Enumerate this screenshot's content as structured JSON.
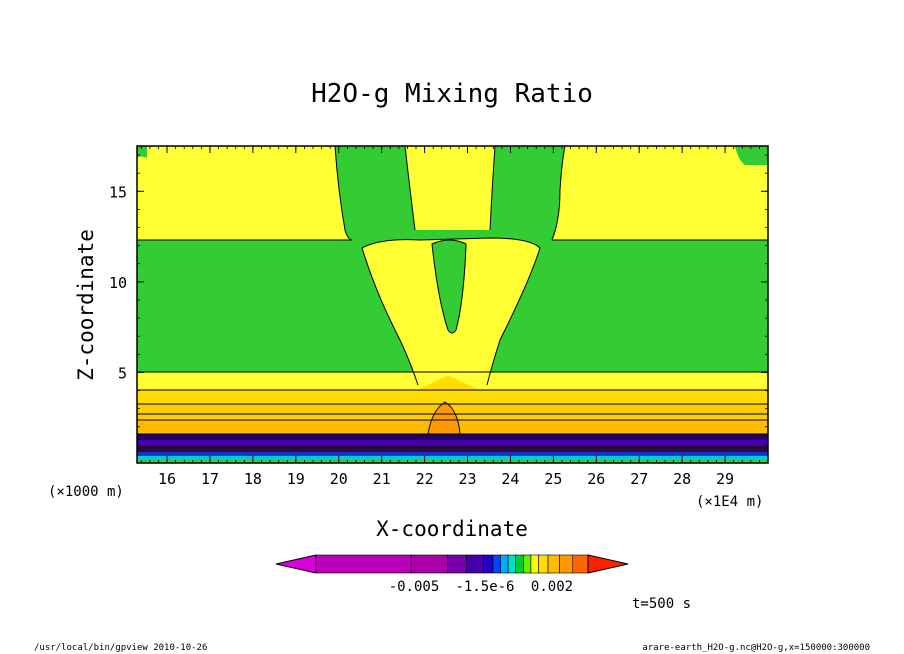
{
  "chart_data": {
    "type": "heatmap",
    "title": "H2O-g Mixing Ratio",
    "xlabel": "X-coordinate",
    "ylabel": "Z-coordinate",
    "x_unit_left": "(×1000 m)",
    "x_unit_right": "(×1E4 m)",
    "x_ticks": [
      "16",
      "17",
      "18",
      "19",
      "20",
      "21",
      "22",
      "23",
      "24",
      "25",
      "26",
      "27",
      "28",
      "29"
    ],
    "y_ticks": [
      "5",
      "10",
      "15"
    ],
    "xlim": [
      15.3,
      30.0
    ],
    "ylim": [
      0,
      17.5
    ],
    "colorbar_ticks": [
      "-0.005",
      "-1.5e-6",
      "0.002"
    ],
    "colorbar_colors": [
      "#dd00dd",
      "#bb00bb",
      "#aa00aa",
      "#7700aa",
      "#4400aa",
      "#2200cc",
      "#0044ff",
      "#00aaff",
      "#00ddcc",
      "#00cc33",
      "#66ee00",
      "#ffff00",
      "#ffdd00",
      "#ffbb00",
      "#ff9900",
      "#ff6600",
      "#ff2200"
    ],
    "time_label": "t=500 s",
    "regions": [
      {
        "name": "green-band",
        "color": "#33cc33",
        "z": [
          5.2,
          12.5
        ]
      },
      {
        "name": "yellow-upper",
        "color": "#ffff33",
        "z": [
          12.5,
          17.5
        ]
      },
      {
        "name": "orange-layers",
        "color": "#ffcc00",
        "z": [
          1.6,
          5.2
        ]
      },
      {
        "name": "dark-layer",
        "color": "#220066",
        "z": [
          0.3,
          1.6
        ]
      }
    ]
  },
  "footer": {
    "left": "/usr/local/bin/gpview  2010-10-26",
    "right": "arare-earth_H2O-g.nc@H2O-g,x=150000:300000"
  }
}
